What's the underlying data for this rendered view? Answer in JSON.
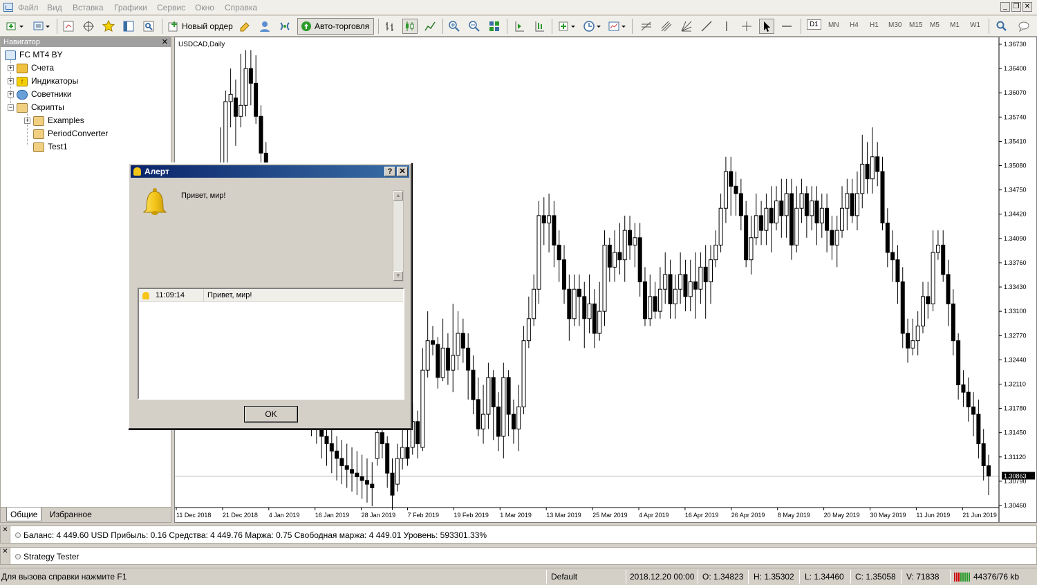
{
  "menu": {
    "items": [
      "Файл",
      "Вид",
      "Вставка",
      "Графики",
      "Сервис",
      "Окно",
      "Справка"
    ]
  },
  "toolbar": {
    "new_order_label": "Новый ордер",
    "autotrading_label": "Авто-торговля",
    "timeframes": [
      "D1",
      "MN",
      "H4",
      "H1",
      "M30",
      "M15",
      "M5",
      "M1",
      "W1"
    ],
    "active_timeframe": "D1"
  },
  "navigator": {
    "title": "Навигатор",
    "root": "FC MT4 BY",
    "items": [
      {
        "label": "Счета",
        "expander": "+"
      },
      {
        "label": "Индикаторы",
        "expander": "+"
      },
      {
        "label": "Советники",
        "expander": "+"
      },
      {
        "label": "Скрипты",
        "expander": "−"
      }
    ],
    "scripts": [
      {
        "label": "Examples",
        "expander": "+"
      },
      {
        "label": "PeriodConverter",
        "expander": ""
      },
      {
        "label": "Test1",
        "expander": ""
      }
    ],
    "tabs": [
      "Общие",
      "Избранное"
    ]
  },
  "chart": {
    "symbol_label": "USDCAD,Daily",
    "current_price_label": "1.30863"
  },
  "chart_data": {
    "type": "candlestick",
    "symbol": "USDCAD",
    "timeframe": "Daily",
    "y_ticks": [
      "1.36730",
      "1.36400",
      "1.36070",
      "1.35740",
      "1.35410",
      "1.35080",
      "1.34750",
      "1.34420",
      "1.34090",
      "1.33760",
      "1.33430",
      "1.33100",
      "1.32770",
      "1.32440",
      "1.32110",
      "1.31780",
      "1.31450",
      "1.31120",
      "1.30790",
      "1.30460"
    ],
    "x_ticks": [
      "11 Dec 2018",
      "21 Dec 2018",
      "4 Jan 2019",
      "16 Jan 2019",
      "28 Jan 2019",
      "7 Feb 2019",
      "19 Feb 2019",
      "1 Mar 2019",
      "13 Mar 2019",
      "25 Mar 2019",
      "4 Apr 2019",
      "16 Apr 2019",
      "26 Apr 2019",
      "8 May 2019",
      "20 May 2019",
      "30 May 2019",
      "11 Jun 2019",
      "21 Jun 2019"
    ],
    "ylim": [
      1.3046,
      1.3673
    ],
    "candles": [
      [
        1.349,
        1.344,
        1.356,
        1.3395
      ],
      [
        1.344,
        1.3595,
        1.361,
        1.342
      ],
      [
        1.3595,
        1.3605,
        1.364,
        1.356
      ],
      [
        1.36,
        1.3575,
        1.3625,
        1.3535
      ],
      [
        1.3575,
        1.359,
        1.366,
        1.356
      ],
      [
        1.359,
        1.364,
        1.3665,
        1.3575
      ],
      [
        1.364,
        1.362,
        1.3665,
        1.359
      ],
      [
        1.362,
        1.3575,
        1.3658,
        1.3565
      ],
      [
        1.3575,
        1.3525,
        1.359,
        1.351
      ],
      [
        1.3525,
        1.343,
        1.354,
        1.341
      ],
      [
        1.343,
        1.3395,
        1.345,
        1.337
      ],
      [
        1.3395,
        1.335,
        1.342,
        1.333
      ],
      [
        1.335,
        1.331,
        1.337,
        1.329
      ],
      [
        1.331,
        1.328,
        1.333,
        1.326
      ],
      [
        1.328,
        1.325,
        1.33,
        1.322
      ],
      [
        1.325,
        1.322,
        1.327,
        1.319
      ],
      [
        1.322,
        1.32,
        1.3245,
        1.317
      ],
      [
        1.32,
        1.318,
        1.323,
        1.316
      ],
      [
        1.318,
        1.316,
        1.321,
        1.314
      ],
      [
        1.316,
        1.315,
        1.319,
        1.313
      ],
      [
        1.315,
        1.314,
        1.317,
        1.311
      ],
      [
        1.314,
        1.313,
        1.316,
        1.31
      ],
      [
        1.313,
        1.312,
        1.315,
        1.309
      ],
      [
        1.312,
        1.311,
        1.314,
        1.308
      ],
      [
        1.311,
        1.31,
        1.3135,
        1.3075
      ],
      [
        1.31,
        1.3095,
        1.313,
        1.307
      ],
      [
        1.3095,
        1.309,
        1.3125,
        1.3065
      ],
      [
        1.309,
        1.3085,
        1.312,
        1.306
      ],
      [
        1.3085,
        1.308,
        1.3115,
        1.3055
      ],
      [
        1.308,
        1.3075,
        1.311,
        1.305
      ],
      [
        1.3075,
        1.307,
        1.3105,
        1.3045
      ],
      [
        1.311,
        1.3145,
        1.316,
        1.31
      ],
      [
        1.3145,
        1.313,
        1.318,
        1.311
      ],
      [
        1.313,
        1.309,
        1.314,
        1.307
      ],
      [
        1.309,
        1.306,
        1.311,
        1.304
      ],
      [
        1.3075,
        1.311,
        1.313,
        1.3065
      ],
      [
        1.311,
        1.3125,
        1.316,
        1.3095
      ],
      [
        1.3125,
        1.311,
        1.315,
        1.31
      ],
      [
        1.3125,
        1.316,
        1.3185,
        1.3115
      ],
      [
        1.316,
        1.313,
        1.3175,
        1.311
      ],
      [
        1.3125,
        1.323,
        1.326,
        1.312
      ],
      [
        1.323,
        1.327,
        1.331,
        1.322
      ],
      [
        1.327,
        1.3265,
        1.329,
        1.325
      ],
      [
        1.3265,
        1.322,
        1.3275,
        1.3205
      ],
      [
        1.322,
        1.326,
        1.33,
        1.3215
      ],
      [
        1.326,
        1.323,
        1.328,
        1.321
      ],
      [
        1.323,
        1.325,
        1.332,
        1.32
      ],
      [
        1.325,
        1.328,
        1.331,
        1.323
      ],
      [
        1.328,
        1.326,
        1.33,
        1.324
      ],
      [
        1.326,
        1.323,
        1.328,
        1.319
      ],
      [
        1.323,
        1.319,
        1.325,
        1.317
      ],
      [
        1.319,
        1.315,
        1.322,
        1.314
      ],
      [
        1.315,
        1.317,
        1.321,
        1.313
      ],
      [
        1.317,
        1.322,
        1.324,
        1.315
      ],
      [
        1.322,
        1.318,
        1.323,
        1.3135
      ],
      [
        1.318,
        1.314,
        1.32,
        1.312
      ],
      [
        1.314,
        1.322,
        1.324,
        1.311
      ],
      [
        1.322,
        1.317,
        1.323,
        1.314
      ],
      [
        1.317,
        1.315,
        1.319,
        1.313
      ],
      [
        1.315,
        1.318,
        1.321,
        1.312
      ],
      [
        1.318,
        1.327,
        1.329,
        1.317
      ],
      [
        1.327,
        1.33,
        1.333,
        1.326
      ],
      [
        1.33,
        1.334,
        1.336,
        1.329
      ],
      [
        1.334,
        1.344,
        1.346,
        1.332
      ],
      [
        1.344,
        1.343,
        1.3465,
        1.34
      ],
      [
        1.343,
        1.344,
        1.347,
        1.339
      ],
      [
        1.344,
        1.34,
        1.346,
        1.337
      ],
      [
        1.34,
        1.338,
        1.342,
        1.335
      ],
      [
        1.338,
        1.334,
        1.34,
        1.332
      ],
      [
        1.334,
        1.33,
        1.336,
        1.327
      ],
      [
        1.33,
        1.334,
        1.336,
        1.329
      ],
      [
        1.334,
        1.333,
        1.336,
        1.329
      ],
      [
        1.333,
        1.33,
        1.335,
        1.326
      ],
      [
        1.33,
        1.332,
        1.336,
        1.328
      ],
      [
        1.332,
        1.328,
        1.334,
        1.326
      ],
      [
        1.328,
        1.331,
        1.335,
        1.327
      ],
      [
        1.331,
        1.34,
        1.342,
        1.329
      ],
      [
        1.34,
        1.337,
        1.341,
        1.335
      ],
      [
        1.337,
        1.339,
        1.342,
        1.335
      ],
      [
        1.339,
        1.338,
        1.343,
        1.336
      ],
      [
        1.338,
        1.342,
        1.344,
        1.335
      ],
      [
        1.342,
        1.34,
        1.344,
        1.338
      ],
      [
        1.34,
        1.341,
        1.343,
        1.337
      ],
      [
        1.341,
        1.335,
        1.343,
        1.333
      ],
      [
        1.335,
        1.33,
        1.337,
        1.329
      ],
      [
        1.33,
        1.333,
        1.336,
        1.329
      ],
      [
        1.333,
        1.331,
        1.335,
        1.33
      ],
      [
        1.331,
        1.334,
        1.337,
        1.33
      ],
      [
        1.334,
        1.336,
        1.339,
        1.332
      ],
      [
        1.336,
        1.332,
        1.338,
        1.33
      ],
      [
        1.332,
        1.334,
        1.336,
        1.33
      ],
      [
        1.334,
        1.336,
        1.339,
        1.332
      ],
      [
        1.336,
        1.333,
        1.338,
        1.331
      ],
      [
        1.333,
        1.335,
        1.338,
        1.331
      ],
      [
        1.335,
        1.334,
        1.339,
        1.33
      ],
      [
        1.334,
        1.337,
        1.339,
        1.332
      ],
      [
        1.337,
        1.335,
        1.34,
        1.33
      ],
      [
        1.335,
        1.338,
        1.34,
        1.332
      ],
      [
        1.338,
        1.34,
        1.342,
        1.337
      ],
      [
        1.34,
        1.345,
        1.347,
        1.339
      ],
      [
        1.345,
        1.35,
        1.352,
        1.343
      ],
      [
        1.35,
        1.348,
        1.352,
        1.344
      ],
      [
        1.348,
        1.347,
        1.35,
        1.344
      ],
      [
        1.347,
        1.344,
        1.349,
        1.342
      ],
      [
        1.344,
        1.338,
        1.346,
        1.337
      ],
      [
        1.338,
        1.341,
        1.344,
        1.336
      ],
      [
        1.341,
        1.344,
        1.347,
        1.34
      ],
      [
        1.344,
        1.342,
        1.346,
        1.34
      ],
      [
        1.342,
        1.345,
        1.347,
        1.34
      ],
      [
        1.345,
        1.343,
        1.348,
        1.339
      ],
      [
        1.343,
        1.346,
        1.348,
        1.342
      ],
      [
        1.346,
        1.344,
        1.349,
        1.341
      ],
      [
        1.344,
        1.347,
        1.349,
        1.341
      ],
      [
        1.347,
        1.34,
        1.349,
        1.338
      ],
      [
        1.34,
        1.345,
        1.348,
        1.339
      ],
      [
        1.345,
        1.347,
        1.349,
        1.343
      ],
      [
        1.347,
        1.344,
        1.348,
        1.341
      ],
      [
        1.344,
        1.346,
        1.348,
        1.342
      ],
      [
        1.346,
        1.343,
        1.348,
        1.34
      ],
      [
        1.343,
        1.345,
        1.347,
        1.341
      ],
      [
        1.345,
        1.342,
        1.347,
        1.339
      ],
      [
        1.342,
        1.34,
        1.344,
        1.338
      ],
      [
        1.34,
        1.342,
        1.344,
        1.337
      ],
      [
        1.342,
        1.345,
        1.348,
        1.341
      ],
      [
        1.345,
        1.347,
        1.349,
        1.342
      ],
      [
        1.347,
        1.344,
        1.349,
        1.343
      ],
      [
        1.344,
        1.347,
        1.35,
        1.342
      ],
      [
        1.347,
        1.351,
        1.355,
        1.345
      ],
      [
        1.351,
        1.349,
        1.354,
        1.347
      ],
      [
        1.349,
        1.352,
        1.356,
        1.347
      ],
      [
        1.352,
        1.35,
        1.354,
        1.348
      ],
      [
        1.35,
        1.343,
        1.352,
        1.342
      ],
      [
        1.343,
        1.339,
        1.345,
        1.337
      ],
      [
        1.339,
        1.338,
        1.342,
        1.335
      ],
      [
        1.338,
        1.335,
        1.34,
        1.332
      ],
      [
        1.335,
        1.328,
        1.337,
        1.326
      ],
      [
        1.328,
        1.326,
        1.33,
        1.324
      ],
      [
        1.326,
        1.327,
        1.33,
        1.325
      ],
      [
        1.327,
        1.329,
        1.331,
        1.325
      ],
      [
        1.329,
        1.333,
        1.335,
        1.328
      ],
      [
        1.333,
        1.332,
        1.335,
        1.33
      ],
      [
        1.332,
        1.339,
        1.342,
        1.331
      ],
      [
        1.339,
        1.34,
        1.342,
        1.338
      ],
      [
        1.34,
        1.336,
        1.342,
        1.335
      ],
      [
        1.336,
        1.332,
        1.338,
        1.329
      ],
      [
        1.332,
        1.327,
        1.334,
        1.325
      ],
      [
        1.327,
        1.321,
        1.328,
        1.319
      ],
      [
        1.321,
        1.32,
        1.323,
        1.318
      ],
      [
        1.32,
        1.318,
        1.322,
        1.316
      ],
      [
        1.318,
        1.317,
        1.32,
        1.314
      ],
      [
        1.317,
        1.313,
        1.319,
        1.311
      ],
      [
        1.313,
        1.31,
        1.315,
        1.308
      ],
      [
        1.31,
        1.3086,
        1.3115,
        1.306
      ]
    ]
  },
  "alert": {
    "title": "Алерт",
    "help_btn": "?",
    "close_btn": "✕",
    "message": "Привет, мир!",
    "list_time": "11:09:14",
    "list_message": "Привет, мир!",
    "ok_label": "OK"
  },
  "terminal": {
    "text": "Баланс: 4 449.60 USD  Прибыль: 0.16  Средства: 4 449.76  Маржа: 0.75  Свободная маржа: 4 449.01  Уровень: 593301.33%"
  },
  "tester": {
    "text": "Strategy Tester"
  },
  "statusbar": {
    "help": "Для вызова справки нажмите F1",
    "profile": "Default",
    "datetime": "2018.12.20 00:00",
    "open": "O: 1.34823",
    "high": "H: 1.35302",
    "low": "L: 1.34460",
    "close": "C: 1.35058",
    "volume": "V: 71838",
    "traffic": "44376/76 kb"
  },
  "colors": {
    "chart_bg": "#ffffff",
    "candle": "#000000",
    "title_bar": "#0a246a"
  }
}
